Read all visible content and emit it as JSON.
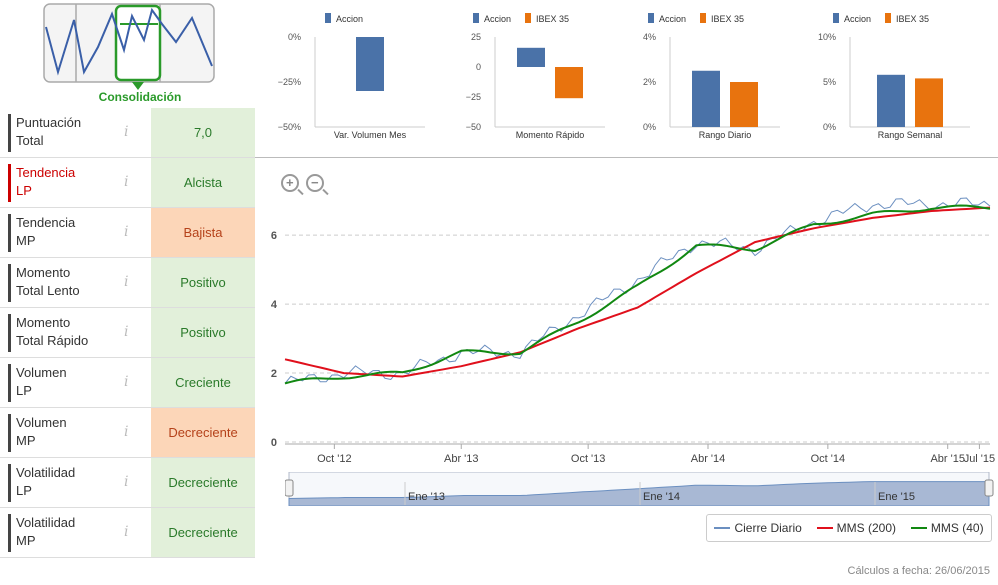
{
  "pattern": {
    "label": "Consolidación",
    "icon": "consolidation-pattern-icon"
  },
  "indicators": [
    {
      "name": "Puntuación Total",
      "line1": "Puntuación",
      "line2": "Total",
      "value": "7,0",
      "color": "green"
    },
    {
      "name": "Tendencia LP",
      "line1": "Tendencia",
      "line2": "LP",
      "value": "Alcista",
      "color": "green",
      "highlight": true
    },
    {
      "name": "Tendencia MP",
      "line1": "Tendencia",
      "line2": "MP",
      "value": "Bajista",
      "color": "orange"
    },
    {
      "name": "Momento Total Lento",
      "line1": "Momento",
      "line2": "Total Lento",
      "value": "Positivo",
      "color": "green"
    },
    {
      "name": "Momento Total Rápido",
      "line1": "Momento",
      "line2": "Total Rápido",
      "value": "Positivo",
      "color": "green"
    },
    {
      "name": "Volumen LP",
      "line1": "Volumen",
      "line2": "LP",
      "value": "Creciente",
      "color": "green"
    },
    {
      "name": "Volumen MP",
      "line1": "Volumen",
      "line2": "MP",
      "value": "Decreciente",
      "color": "orange"
    },
    {
      "name": "Volatilidad LP",
      "line1": "Volatilidad",
      "line2": "LP",
      "value": "Decreciente",
      "color": "green"
    },
    {
      "name": "Volatilidad MP",
      "line1": "Volatilidad",
      "line2": "MP",
      "value": "Decreciente",
      "color": "green"
    }
  ],
  "info_glyph": "i",
  "colors": {
    "accion": "#4a72a8",
    "ibex": "#e8730e",
    "mms200": "#e0101c",
    "mms40": "#118811",
    "cierre": "#6b8fc0",
    "green_cell": "#e2f0da",
    "orange_cell": "#fcd6b8"
  },
  "chart_data": [
    {
      "type": "bar",
      "title": "Var. Volumen Mes",
      "legend": [
        "Accion"
      ],
      "series": [
        {
          "name": "Accion",
          "values": [
            -30
          ]
        }
      ],
      "yticks": [
        "0%",
        "−25%",
        "−50%"
      ],
      "ylim": [
        -50,
        0
      ]
    },
    {
      "type": "bar",
      "title": "Momento Rápido",
      "legend": [
        "Accion",
        "IBEX 35"
      ],
      "series": [
        {
          "name": "Accion",
          "values": [
            16
          ]
        },
        {
          "name": "IBEX 35",
          "values": [
            -26
          ]
        }
      ],
      "yticks": [
        "25",
        "0",
        "−25",
        "−50"
      ],
      "ylim": [
        -50,
        25
      ]
    },
    {
      "type": "bar",
      "title": "Rango Diario",
      "legend": [
        "Accion",
        "IBEX 35"
      ],
      "series": [
        {
          "name": "Accion",
          "values": [
            2.5
          ]
        },
        {
          "name": "IBEX 35",
          "values": [
            2.0
          ]
        }
      ],
      "yticks": [
        "4%",
        "2%",
        "0%"
      ],
      "ylim": [
        0,
        4
      ]
    },
    {
      "type": "bar",
      "title": "Rango Semanal",
      "legend": [
        "Accion",
        "IBEX 35"
      ],
      "series": [
        {
          "name": "Accion",
          "values": [
            5.8
          ]
        },
        {
          "name": "IBEX 35",
          "values": [
            5.4
          ]
        }
      ],
      "yticks": [
        "10%",
        "5%",
        "0%"
      ],
      "ylim": [
        0,
        10
      ]
    },
    {
      "type": "line",
      "yticks": [
        "0",
        "2",
        "4",
        "6"
      ],
      "ylim": [
        0,
        7.6
      ],
      "xticks": [
        "Oct '12",
        "Abr '13",
        "Oct '13",
        "Abr '14",
        "Oct '14",
        "Abr '15",
        "Jul '15"
      ],
      "xtick_t": [
        0.07,
        0.25,
        0.43,
        0.6,
        0.77,
        0.94,
        0.985
      ],
      "x_dates": [
        "2012-07",
        "2012-10",
        "2013-01",
        "2013-04",
        "2013-07",
        "2013-10",
        "2014-01",
        "2014-04",
        "2014-07",
        "2014-10",
        "2015-01",
        "2015-04",
        "2015-06"
      ],
      "series": [
        {
          "name": "Cierre Diario",
          "values": [
            1.7,
            2.0,
            2.0,
            2.6,
            2.6,
            3.7,
            4.7,
            5.8,
            5.6,
            6.4,
            6.9,
            6.9,
            6.9
          ]
        },
        {
          "name": "MMS (200)",
          "values": [
            2.4,
            2.0,
            1.9,
            2.2,
            2.6,
            3.3,
            3.9,
            4.9,
            5.8,
            6.2,
            6.5,
            6.7,
            6.8
          ]
        },
        {
          "name": "MMS (40)",
          "values": [
            1.7,
            1.9,
            2.0,
            2.6,
            2.6,
            3.5,
            4.5,
            5.7,
            5.6,
            6.3,
            6.6,
            6.8,
            6.8
          ]
        }
      ]
    }
  ],
  "navigator": {
    "labels": [
      "Ene '13",
      "Ene '14",
      "Ene '15"
    ]
  },
  "legend": {
    "cierre": "Cierre Diario",
    "mms200": "MMS (200)",
    "mms40": "MMS (40)"
  },
  "footer": "Cálculos a fecha: 26/06/2015"
}
